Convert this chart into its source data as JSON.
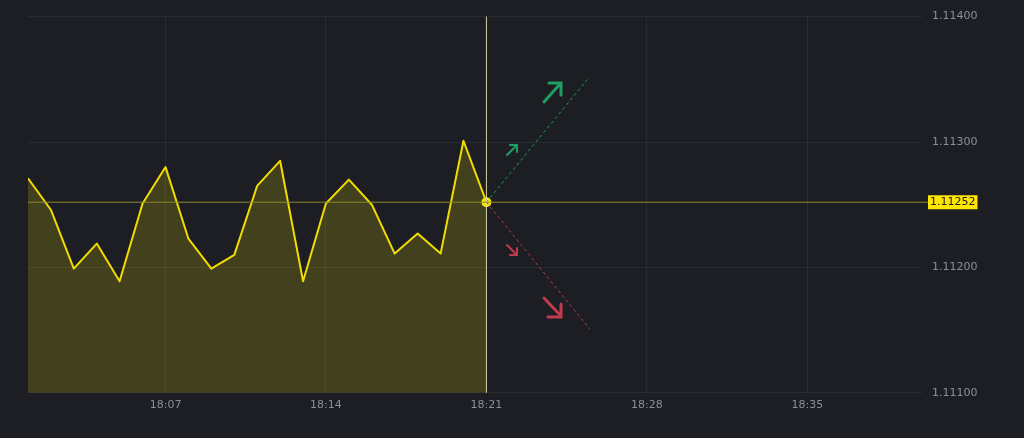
{
  "chart_data": {
    "type": "area",
    "xlim": [
      18.0167,
      18.6667
    ],
    "xticks": [
      {
        "value": 18.1167,
        "label": "18:07"
      },
      {
        "value": 18.2333,
        "label": "18:14"
      },
      {
        "value": 18.35,
        "label": "18:21"
      },
      {
        "value": 18.4667,
        "label": "18:28"
      },
      {
        "value": 18.5833,
        "label": "18:35"
      }
    ],
    "ylim": [
      1.111,
      1.114
    ],
    "yticks": [
      {
        "value": 1.111,
        "label": "1.11100"
      },
      {
        "value": 1.112,
        "label": "1.11200"
      },
      {
        "value": 1.113,
        "label": "1.11300"
      },
      {
        "value": 1.114,
        "label": "1.11400"
      }
    ],
    "grid": true,
    "legend": false,
    "marker": "none",
    "series": [
      {
        "color": "#f2dc00",
        "x": [
          18.0167,
          18.0333,
          18.05,
          18.0667,
          18.0833,
          18.1,
          18.1167,
          18.1333,
          18.15,
          18.1667,
          18.1833,
          18.2,
          18.2167,
          18.2333,
          18.25,
          18.2667,
          18.2833,
          18.3,
          18.3167,
          18.3333,
          18.35
        ],
        "values": [
          1.11271,
          1.11246,
          1.11199,
          1.11219,
          1.11189,
          1.11251,
          1.1128,
          1.11223,
          1.11199,
          1.1121,
          1.11265,
          1.11285,
          1.11189,
          1.11251,
          1.1127,
          1.1125,
          1.11211,
          1.11227,
          1.11211,
          1.11301,
          1.11252
        ]
      },
      {
        "type": "line",
        "color": "#1e9e62",
        "line_style": "dashed",
        "x": [
          18.35,
          18.425
        ],
        "values": [
          1.11252,
          1.11352
        ]
      },
      {
        "type": "line",
        "color": "#c23a4e",
        "line_style": "dashed",
        "x": [
          18.35,
          18.425
        ],
        "values": [
          1.11252,
          1.11151
        ]
      },
      {
        "type": "scatter",
        "color": "#ffe600",
        "marker": "circle",
        "x": [
          18.35
        ],
        "values": [
          1.11252
        ]
      }
    ],
    "ref_lines": [
      {
        "axis": "x",
        "value": 18.35,
        "color": "#d8d2a0"
      },
      {
        "axis": "y",
        "value": 1.11252,
        "label": "1.11252",
        "color": "#8f8a2a"
      }
    ]
  }
}
